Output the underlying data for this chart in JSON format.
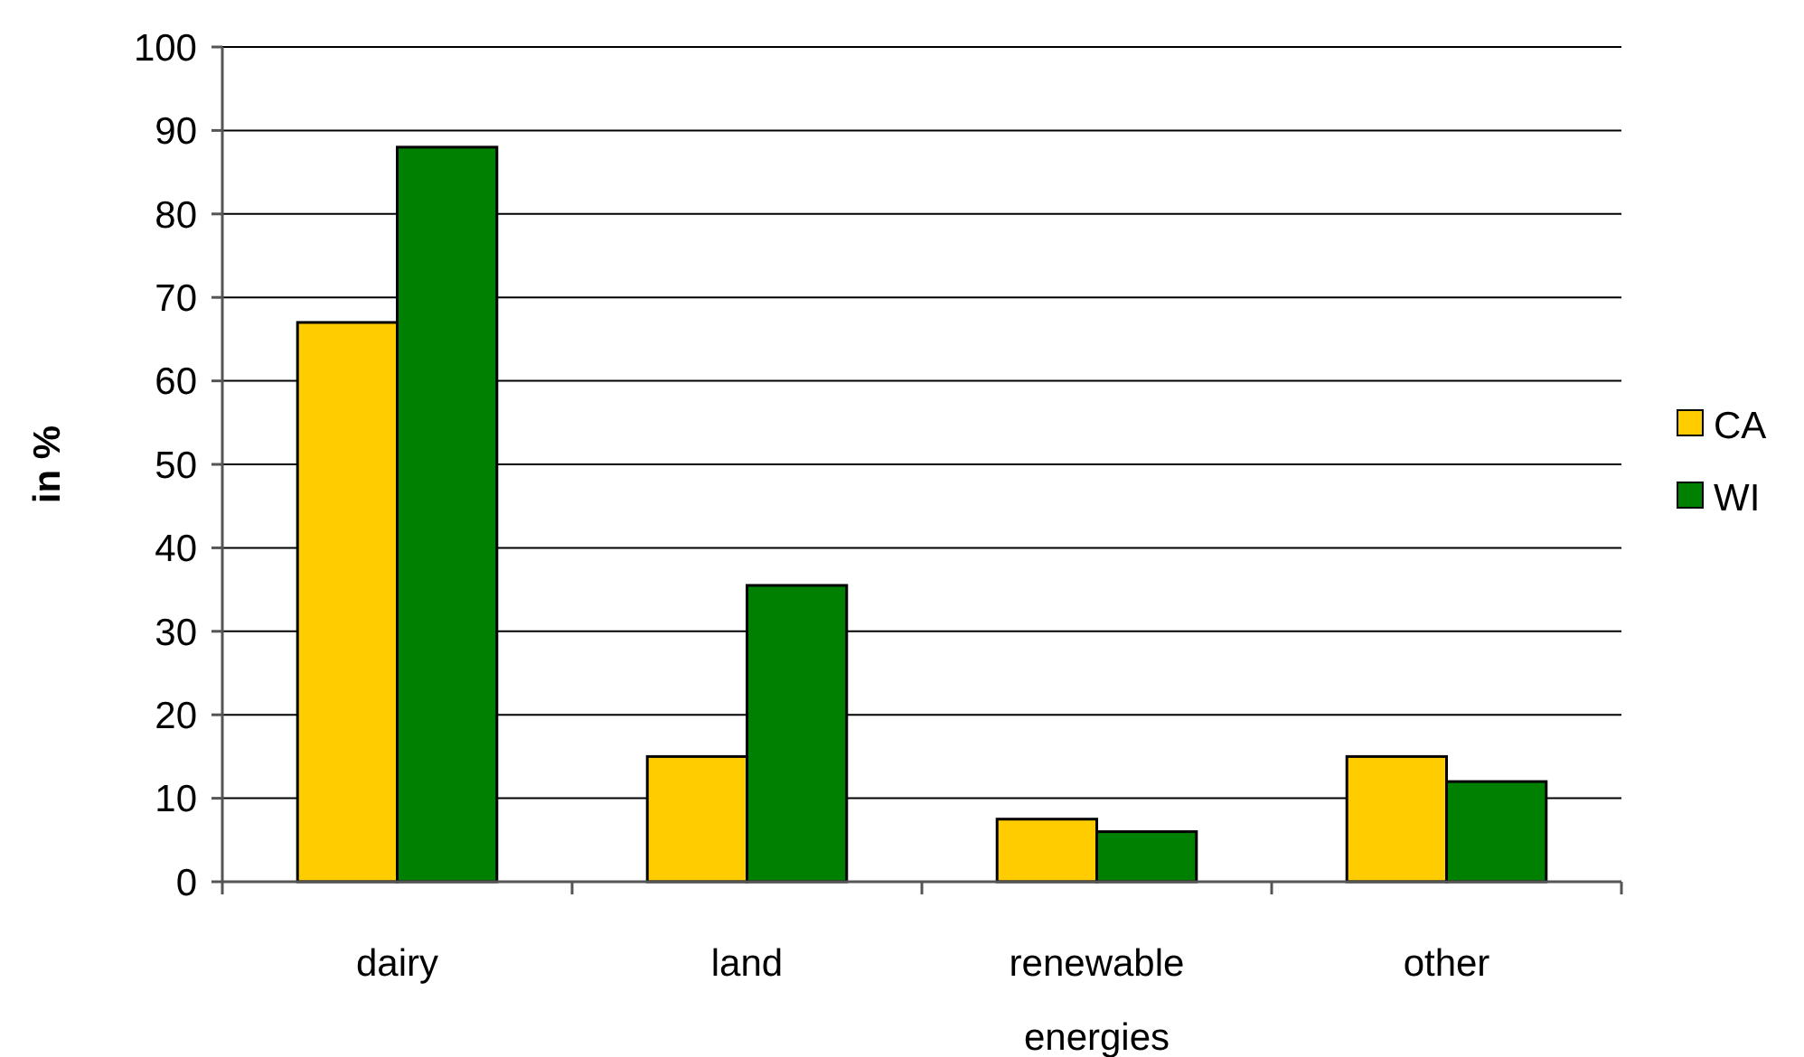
{
  "chart_data": {
    "type": "bar",
    "ylabel": "in %",
    "categories": [
      "dairy",
      "land",
      "renewable energies",
      "other"
    ],
    "series": [
      {
        "name": "CA",
        "color": "#ffcc00",
        "values": [
          67,
          15,
          7.5,
          15
        ]
      },
      {
        "name": "WI",
        "color": "#008000",
        "values": [
          88,
          35.5,
          6,
          12
        ]
      }
    ],
    "ylim": [
      0,
      100
    ],
    "yticks": [
      0,
      10,
      20,
      30,
      40,
      50,
      60,
      70,
      80,
      90,
      100
    ],
    "grid": "y",
    "legend": "right"
  }
}
